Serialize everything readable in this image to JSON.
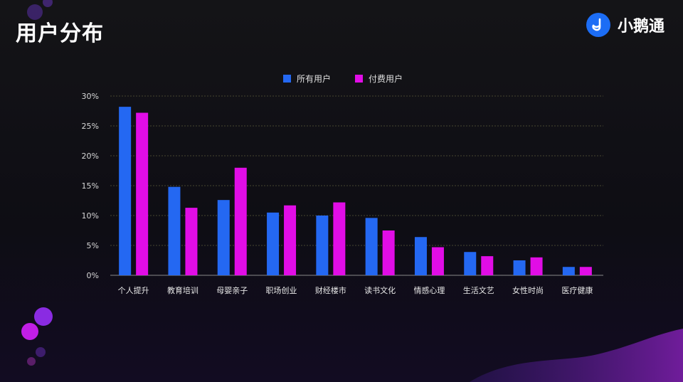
{
  "header": {
    "title": "用户分布"
  },
  "brand": {
    "name": "小鹅通",
    "accent": "#1c6df5"
  },
  "legend": [
    {
      "label": "所有用户",
      "color": "#2468f2"
    },
    {
      "label": "付费用户",
      "color": "#e10de6"
    }
  ],
  "chart_data": {
    "type": "bar",
    "title": "",
    "categories": [
      "个人提升",
      "教育培训",
      "母婴亲子",
      "职场创业",
      "财经楼市",
      "读书文化",
      "情感心理",
      "生活文艺",
      "女性时尚",
      "医疗健康"
    ],
    "series": [
      {
        "name": "所有用户",
        "color": "#2468f2",
        "values": [
          28.2,
          14.8,
          12.6,
          10.5,
          10.0,
          9.6,
          6.4,
          3.9,
          2.5,
          1.4
        ]
      },
      {
        "name": "付费用户",
        "color": "#e10de6",
        "values": [
          27.2,
          11.3,
          18.0,
          11.7,
          12.2,
          7.5,
          4.7,
          3.2,
          3.0,
          1.4
        ]
      }
    ],
    "ylim": [
      0,
      30
    ],
    "yticks": [
      "0%",
      "5%",
      "10%",
      "15%",
      "20%",
      "25%",
      "30%"
    ],
    "ytick_values": [
      0,
      5,
      10,
      15,
      20,
      25,
      30
    ],
    "grid": true,
    "legend_position": "top-center"
  }
}
